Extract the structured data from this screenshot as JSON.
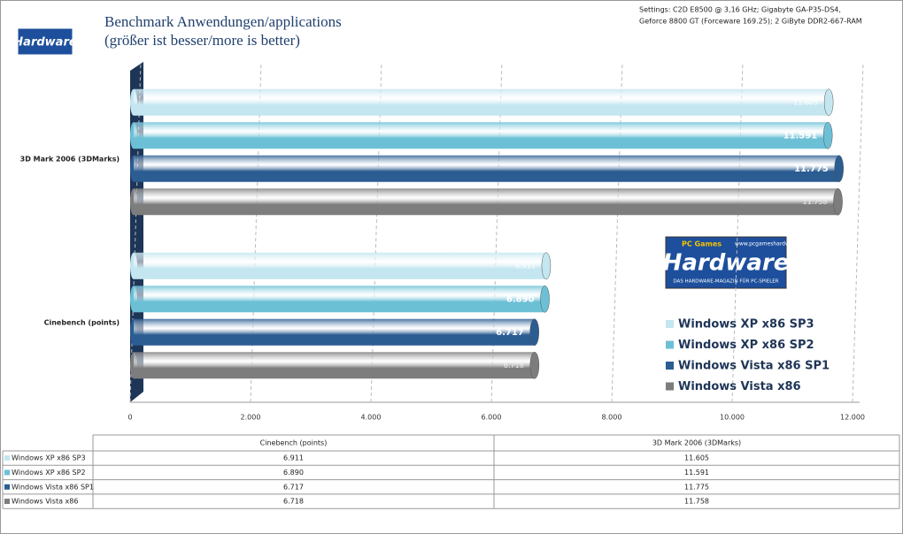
{
  "chart_data": {
    "type": "bar",
    "orientation": "horizontal",
    "title": "Benchmark Anwendungen/applications",
    "subtitle": "(größer ist besser/more is better)",
    "annotations": [
      "Settings: C2D E8500 @ 3,16 GHz; Gigabyte  GA-P35-DS4,",
      "Geforce 8800 GT (Forceware 169.25); 2 GiByte DDR2-667-RAM"
    ],
    "logo": {
      "small": "Hardware",
      "brand": "PC Games",
      "name": "Hardware",
      "url": "www.pcgameshardware.de",
      "tagline": "DAS HARDWARE-MAGAZIN FÜR PC-SPIELER"
    },
    "categories": [
      "Cinebench (points)",
      "3D Mark 2006  (3DMarks)"
    ],
    "series": [
      {
        "name": "Windows XP x86 SP3",
        "color": "#c4e6f0",
        "values": [
          6911,
          11605
        ],
        "value_labels": [
          "6.911",
          "11.605"
        ]
      },
      {
        "name": "Windows XP x86 SP2",
        "color": "#6cc0d6",
        "values": [
          6890,
          11591
        ],
        "value_labels": [
          "6.890",
          "11.591"
        ]
      },
      {
        "name": "Windows Vista x86 SP1",
        "color": "#2b5c92",
        "values": [
          6717,
          11775
        ],
        "value_labels": [
          "6.717",
          "11.775"
        ]
      },
      {
        "name": "Windows Vista x86",
        "color": "#7d7d7d",
        "values": [
          6718,
          11758
        ],
        "value_labels": [
          "6.718",
          "11.758"
        ]
      }
    ],
    "xlim": [
      0,
      12000
    ],
    "xticks": [
      0,
      {
        "value": 2000,
        "label": "2.000"
      },
      {
        "value": 4000,
        "label": "4.000"
      },
      {
        "value": 6000,
        "label": "6.000"
      },
      {
        "value": 8000,
        "label": "8.000"
      },
      {
        "value": 10000,
        "label": "10.000"
      },
      {
        "value": 12000,
        "label": "12.000"
      }
    ],
    "grid": true,
    "legend": "bottom-right",
    "data_table": true
  }
}
